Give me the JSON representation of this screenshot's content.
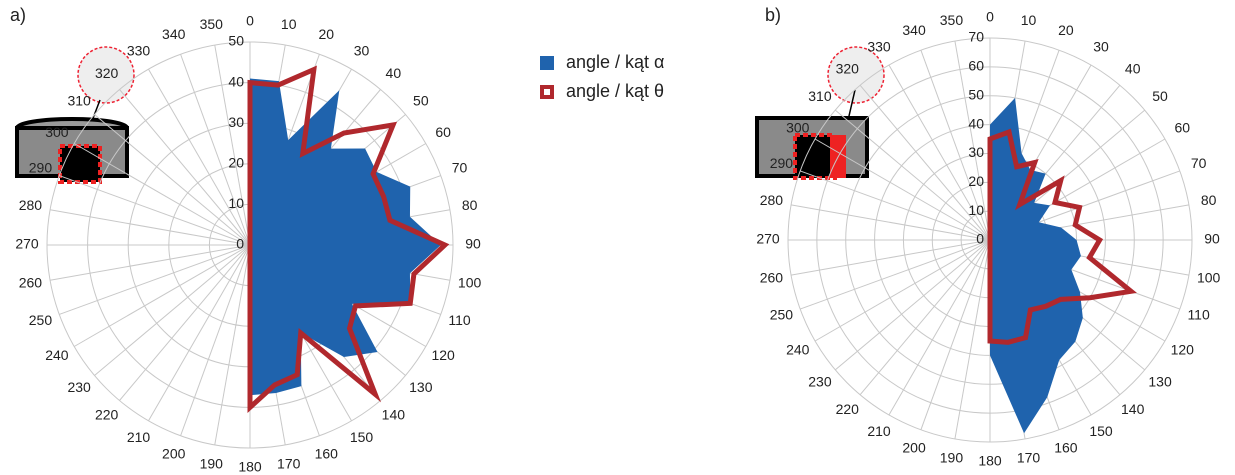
{
  "chart_data": [
    {
      "type": "radar",
      "panel_label": "a)",
      "categories": [
        0,
        10,
        20,
        30,
        40,
        50,
        60,
        70,
        80,
        90,
        100,
        110,
        120,
        130,
        140,
        150,
        160,
        170,
        180,
        190,
        200,
        210,
        220,
        230,
        240,
        250,
        260,
        270,
        280,
        290,
        300,
        310,
        320,
        330,
        340,
        350
      ],
      "ylim": [
        0,
        50
      ],
      "yticks": [
        0,
        10,
        20,
        30,
        40,
        50
      ],
      "grid": true,
      "series": [
        {
          "name": "angle / kąt α",
          "color": "#1f63ad",
          "fill": true,
          "values": [
            41,
            41,
            27.5,
            44,
            31,
            37,
            36,
            42,
            40,
            47,
            40,
            42,
            29,
            41,
            36,
            25,
            37,
            37,
            37,
            0,
            0,
            0,
            0,
            0,
            0,
            0,
            0,
            0,
            0,
            0,
            0,
            0,
            0,
            0,
            0,
            0
          ]
        },
        {
          "name": "angle / kąt θ",
          "color": "#b0282d",
          "fill": false,
          "values": [
            40,
            40,
            46,
            26,
            36,
            46,
            35,
            35,
            35,
            48,
            41,
            42,
            30,
            32,
            48,
            25,
            34,
            35,
            40,
            0,
            0,
            0,
            0,
            0,
            0,
            0,
            0,
            0,
            0,
            0,
            0,
            0,
            0,
            0,
            0,
            0
          ]
        }
      ]
    },
    {
      "type": "radar",
      "panel_label": "b)",
      "categories": [
        0,
        10,
        20,
        30,
        40,
        50,
        60,
        70,
        80,
        90,
        100,
        110,
        120,
        130,
        140,
        150,
        160,
        170,
        180,
        190,
        200,
        210,
        220,
        230,
        240,
        250,
        260,
        270,
        280,
        290,
        300,
        310,
        320,
        330,
        340,
        350
      ],
      "ylim": [
        0,
        70
      ],
      "yticks": [
        0,
        10,
        20,
        30,
        40,
        50,
        60,
        70
      ],
      "grid": true,
      "series": [
        {
          "color": "#1f63ad",
          "fill": true,
          "values": [
            40,
            50,
            32,
            28,
            30,
            20,
            24,
            18,
            25,
            30,
            32,
            30,
            36,
            42,
            46,
            48,
            58,
            68,
            40,
            0,
            0,
            0,
            0,
            0,
            0,
            0,
            0,
            0,
            0,
            0,
            0,
            0,
            0,
            0,
            0,
            0
          ]
        },
        {
          "color": "#b0282d",
          "fill": false,
          "values": [
            35,
            38,
            27,
            31,
            16,
            32,
            26,
            33,
            30,
            38,
            35,
            52,
            40,
            32,
            30,
            28,
            36,
            36,
            35,
            0,
            0,
            0,
            0,
            0,
            0,
            0,
            0,
            0,
            0,
            0,
            0,
            0,
            0,
            0,
            0,
            0
          ]
        }
      ]
    }
  ]
}
